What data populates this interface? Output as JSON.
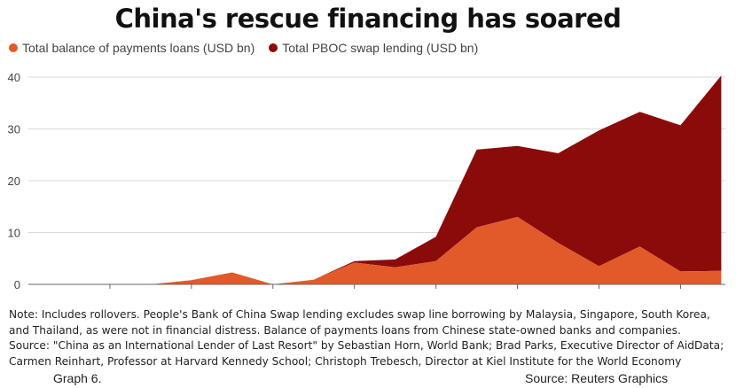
{
  "header": {
    "title": "China's rescue financing has soared"
  },
  "footer": {
    "note_lines": [
      "Note: Includes rollovers. People's Bank of China Swap lending excludes swap line borrowing by Malaysia, Singapore, South Korea,",
      "and Thailand, as were not in financial distress. Balance of payments loans from Chinese state-owned banks and companies.",
      "Source: \"China as an International Lender of Last Resort\" by Sebastian Horn, World Bank; Brad Parks, Executive Director of AidData;",
      "Carmen Reinhart, Professor at Harvard Kennedy School; Christoph Trebesch, Director at Kiel Institute for the World Economy"
    ],
    "graph_label": "Graph 6.",
    "credit": "Source: Reuters Graphics"
  },
  "colors": {
    "bop_loans": "#e25a2a",
    "swap_lending": "#8b0b0b",
    "grid": "#d9d9d9",
    "axis_text": "#444444"
  },
  "chart_data": {
    "type": "area",
    "stacked": true,
    "title": "China's rescue financing has soared",
    "xlabel": "",
    "ylabel": "",
    "x": [
      2004,
      2005,
      2006,
      2007,
      2008,
      2009,
      2010,
      2011,
      2012,
      2013,
      2014,
      2015,
      2016,
      2017,
      2018,
      2019,
      2020,
      2021
    ],
    "x_ticks": [
      2006,
      2008,
      2010,
      2012,
      2014,
      2016,
      2018,
      2020
    ],
    "y_ticks": [
      0,
      10,
      20,
      30,
      40
    ],
    "ylim": [
      0,
      40
    ],
    "xlim": [
      2004,
      2021.1
    ],
    "grid": true,
    "legend_position": "top-left",
    "series": [
      {
        "name": "Total balance of payments loans (USD bn)",
        "values": [
          0,
          0,
          0,
          0,
          0.8,
          2.3,
          0,
          0.9,
          4.2,
          3.3,
          4.5,
          11,
          13,
          8,
          3.5,
          7.3,
          2.5,
          2.6
        ]
      },
      {
        "name": "Total PBOC swap lending (USD bn)",
        "values": [
          0,
          0,
          0,
          0,
          0,
          0,
          0,
          0,
          0.3,
          1.5,
          4.7,
          15,
          13.7,
          17.3,
          26.2,
          26,
          28.2,
          37.7
        ]
      }
    ]
  }
}
